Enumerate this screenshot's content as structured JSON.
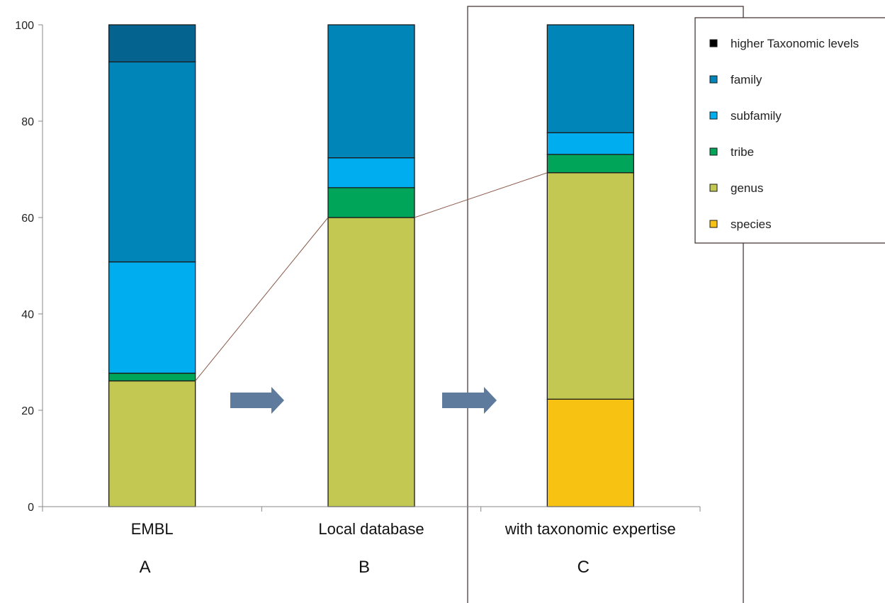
{
  "chart_data": {
    "type": "bar",
    "stacked": true,
    "categories": [
      "EMBL",
      "Local database",
      "with taxonomic expertise"
    ],
    "panel_labels": [
      "A",
      "B",
      "C"
    ],
    "ylim": [
      0,
      100
    ],
    "yticks": [
      0,
      20,
      40,
      60,
      80,
      100
    ],
    "grid": false,
    "legend_position": "right",
    "series": [
      {
        "name": "species",
        "color": "#f8c213",
        "values": [
          0,
          0,
          22.3
        ]
      },
      {
        "name": "genus",
        "color": "#c3c852",
        "values": [
          26.1,
          60.0,
          47.0
        ]
      },
      {
        "name": "tribe",
        "color": "#00a55a",
        "values": [
          1.6,
          6.2,
          3.8
        ]
      },
      {
        "name": "subfamily",
        "color": "#00aeef",
        "values": [
          23.1,
          6.2,
          4.5
        ]
      },
      {
        "name": "family",
        "color": "#0085b8",
        "values": [
          41.5,
          27.6,
          22.4
        ]
      },
      {
        "name": "higher Taxonomic levels",
        "color": "#05638f",
        "values": [
          7.7,
          0,
          0
        ]
      }
    ],
    "legend_order": [
      "higher Taxonomic levels",
      "family",
      "subfamily",
      "tribe",
      "genus",
      "species"
    ],
    "legend_swatch_colors": {
      "higher Taxonomic levels": "#000000",
      "family": "#0085b8",
      "subfamily": "#00aeef",
      "tribe": "#00a55a",
      "genus": "#c3c852",
      "species": "#f8c213"
    },
    "connectors": [
      {
        "from_category": 0,
        "to_category": 1,
        "from_value": 26.1,
        "to_value": 60.0
      },
      {
        "from_category": 1,
        "to_category": 2,
        "from_value": 60.0,
        "to_value": 69.3
      }
    ],
    "arrow_color": "#5e7a9c",
    "connector_color": "#8b5a4a"
  }
}
